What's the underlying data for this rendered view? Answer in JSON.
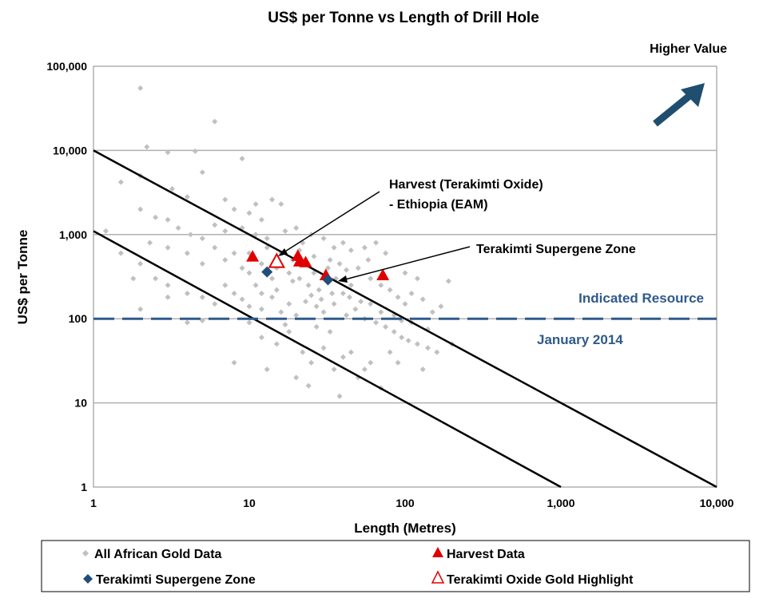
{
  "chart_data": {
    "type": "scatter",
    "title": "US$ per Tonne vs Length of Drill Hole",
    "xlabel": "Length (Metres)",
    "ylabel": "US$ per Tonne",
    "xscale": "log",
    "yscale": "log",
    "xlim": [
      1,
      10000
    ],
    "ylim": [
      1,
      100000
    ],
    "xticks": [
      {
        "v": 1,
        "label": "1"
      },
      {
        "v": 10,
        "label": "10"
      },
      {
        "v": 100,
        "label": "100"
      },
      {
        "v": 1000,
        "label": "1,000"
      },
      {
        "v": 10000,
        "label": "10,000"
      }
    ],
    "yticks": [
      {
        "v": 1,
        "label": "1"
      },
      {
        "v": 10,
        "label": "10"
      },
      {
        "v": 100,
        "label": "100"
      },
      {
        "v": 1000,
        "label": "1,000"
      },
      {
        "v": 10000,
        "label": "10,000"
      },
      {
        "v": 100000,
        "label": "100,000"
      }
    ],
    "grid": "horizontal",
    "colors": {
      "grey": "#c0c0c0",
      "harvest": "#e00000",
      "supergene": "#1f4e79",
      "dash": "#2e5a8c",
      "arrow": "#1f4e6e"
    },
    "reference_lines": [
      {
        "type": "solid",
        "from": [
          1,
          10000
        ],
        "to": [
          10000,
          1
        ]
      },
      {
        "type": "solid",
        "from": [
          1,
          1100
        ],
        "to": [
          1000,
          1
        ]
      },
      {
        "type": "dashed",
        "y": 100
      }
    ],
    "series": [
      {
        "name": "All African Gold Data",
        "marker": "diamond",
        "points": [
          [
            2,
            55000
          ],
          [
            6,
            22000
          ],
          [
            2.2,
            11000
          ],
          [
            3,
            9500
          ],
          [
            4.5,
            9800
          ],
          [
            9,
            8000
          ],
          [
            1.5,
            4200
          ],
          [
            2,
            5000
          ],
          [
            5,
            5500
          ],
          [
            3.2,
            3500
          ],
          [
            4,
            2800
          ],
          [
            7,
            2600
          ],
          [
            8,
            2000
          ],
          [
            10,
            1800
          ],
          [
            14,
            2600
          ],
          [
            16,
            2300
          ],
          [
            12,
            1500
          ],
          [
            2,
            2000
          ],
          [
            2.5,
            1600
          ],
          [
            3,
            1500
          ],
          [
            3.5,
            1200
          ],
          [
            4.2,
            1000
          ],
          [
            5,
            900
          ],
          [
            6,
            1300
          ],
          [
            7,
            1100
          ],
          [
            9,
            1200
          ],
          [
            11,
            1000
          ],
          [
            13,
            900
          ],
          [
            17,
            1100
          ],
          [
            20,
            1200
          ],
          [
            22,
            800
          ],
          [
            25,
            1000
          ],
          [
            30,
            900
          ],
          [
            35,
            700
          ],
          [
            40,
            800
          ],
          [
            45,
            650
          ],
          [
            55,
            700
          ],
          [
            65,
            800
          ],
          [
            3,
            700
          ],
          [
            4,
            600
          ],
          [
            5,
            450
          ],
          [
            6,
            700
          ],
          [
            7,
            500
          ],
          [
            8,
            600
          ],
          [
            9,
            400
          ],
          [
            10,
            350
          ],
          [
            12,
            450
          ],
          [
            14,
            300
          ],
          [
            15,
            400
          ],
          [
            18,
            350
          ],
          [
            19,
            280
          ],
          [
            21,
            300
          ],
          [
            24,
            250
          ],
          [
            26,
            350
          ],
          [
            28,
            220
          ],
          [
            32,
            400
          ],
          [
            36,
            300
          ],
          [
            40,
            200
          ],
          [
            45,
            250
          ],
          [
            50,
            400
          ],
          [
            60,
            300
          ],
          [
            70,
            250
          ],
          [
            80,
            220
          ],
          [
            90,
            180
          ],
          [
            100,
            150
          ],
          [
            110,
            200
          ],
          [
            130,
            170
          ],
          [
            150,
            120
          ],
          [
            170,
            140
          ],
          [
            190,
            280
          ],
          [
            2,
            450
          ],
          [
            2.5,
            300
          ],
          [
            3,
            250
          ],
          [
            4,
            200
          ],
          [
            5,
            180
          ],
          [
            6,
            150
          ],
          [
            7,
            250
          ],
          [
            8,
            200
          ],
          [
            9,
            170
          ],
          [
            10,
            140
          ],
          [
            12,
            130
          ],
          [
            14,
            180
          ],
          [
            16,
            120
          ],
          [
            18,
            150
          ],
          [
            20,
            110
          ],
          [
            23,
            160
          ],
          [
            27,
            140
          ],
          [
            30,
            120
          ],
          [
            35,
            150
          ],
          [
            42,
            110
          ],
          [
            48,
            130
          ],
          [
            55,
            100
          ],
          [
            65,
            90
          ],
          [
            75,
            80
          ],
          [
            85,
            70
          ],
          [
            95,
            60
          ],
          [
            105,
            55
          ],
          [
            120,
            50
          ],
          [
            140,
            45
          ],
          [
            160,
            40
          ],
          [
            200,
            50
          ],
          [
            10,
            90
          ],
          [
            12,
            60
          ],
          [
            15,
            50
          ],
          [
            18,
            70
          ],
          [
            22,
            40
          ],
          [
            25,
            30
          ],
          [
            30,
            45
          ],
          [
            35,
            25
          ],
          [
            40,
            35
          ],
          [
            50,
            20
          ],
          [
            60,
            30
          ],
          [
            70,
            15
          ],
          [
            8,
            30
          ],
          [
            13,
            25
          ],
          [
            20,
            20
          ],
          [
            24,
            16
          ],
          [
            38,
            12
          ],
          [
            45,
            40
          ],
          [
            55,
            25
          ],
          [
            80,
            40
          ],
          [
            90,
            30
          ],
          [
            130,
            25
          ],
          [
            2,
            130
          ],
          [
            3,
            180
          ],
          [
            4,
            90
          ],
          [
            5,
            95
          ],
          [
            1.2,
            1100
          ],
          [
            1.5,
            600
          ],
          [
            1.8,
            300
          ],
          [
            2.3,
            800
          ],
          [
            11,
            2300
          ],
          [
            13,
            700
          ],
          [
            16,
            600
          ],
          [
            19,
            500
          ],
          [
            21,
            650
          ],
          [
            26,
            550
          ],
          [
            33,
            500
          ],
          [
            38,
            450
          ],
          [
            42,
            380
          ],
          [
            58,
            500
          ],
          [
            75,
            600
          ],
          [
            100,
            350
          ],
          [
            120,
            300
          ],
          [
            60,
            150
          ],
          [
            70,
            120
          ],
          [
            85,
            110
          ],
          [
            95,
            95
          ],
          [
            110,
            90
          ],
          [
            140,
            75
          ],
          [
            33,
            70
          ],
          [
            27,
            80
          ],
          [
            17,
            85
          ],
          [
            10,
            600
          ],
          [
            11,
            250
          ],
          [
            12,
            200
          ],
          [
            15,
            220
          ],
          [
            25,
            190
          ],
          [
            29,
            170
          ],
          [
            34,
            200
          ],
          [
            44,
            180
          ],
          [
            52,
            160
          ]
        ]
      },
      {
        "name": "Harvest Data",
        "marker": "triangle",
        "points": [
          [
            10.5,
            550
          ],
          [
            20.5,
            560
          ],
          [
            21,
            480
          ],
          [
            23,
            470
          ],
          [
            31,
            330
          ],
          [
            72,
            330
          ]
        ]
      },
      {
        "name": "Terakimti Supergene Zone",
        "marker": "diamond",
        "points": [
          [
            13,
            360
          ],
          [
            32,
            290
          ]
        ]
      },
      {
        "name": "Terakimti Oxide Gold Highlight",
        "marker": "open-triangle",
        "points": [
          [
            15,
            480
          ]
        ]
      }
    ],
    "annotations": {
      "higher_value": "Higher Value",
      "harvest_oxide_1": "Harvest (Terakimti Oxide)",
      "harvest_oxide_2": "- Ethiopia (EAM)",
      "supergene": "Terakimti Supergene Zone",
      "indicated": "Indicated Resource",
      "january": "January 2014"
    }
  }
}
